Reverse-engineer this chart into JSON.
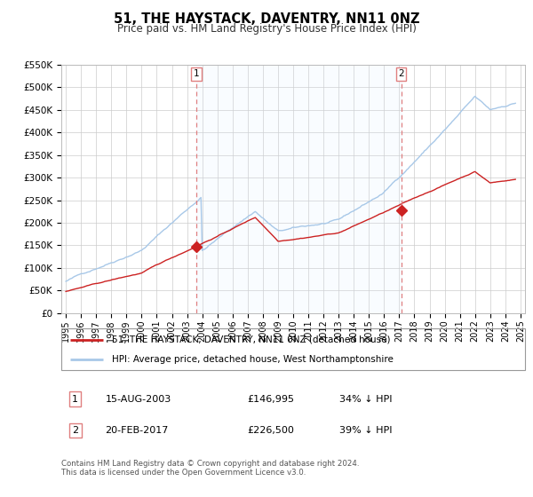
{
  "title": "51, THE HAYSTACK, DAVENTRY, NN11 0NZ",
  "subtitle": "Price paid vs. HM Land Registry's House Price Index (HPI)",
  "ylabel_ticks": [
    "£0",
    "£50K",
    "£100K",
    "£150K",
    "£200K",
    "£250K",
    "£300K",
    "£350K",
    "£400K",
    "£450K",
    "£500K",
    "£550K"
  ],
  "ytick_vals": [
    0,
    50000,
    100000,
    150000,
    200000,
    250000,
    300000,
    350000,
    400000,
    450000,
    500000,
    550000
  ],
  "ylim": [
    0,
    550000
  ],
  "xtick_years": [
    1995,
    1996,
    1997,
    1998,
    1999,
    2000,
    2001,
    2002,
    2003,
    2004,
    2005,
    2006,
    2007,
    2008,
    2009,
    2010,
    2011,
    2012,
    2013,
    2014,
    2015,
    2016,
    2017,
    2018,
    2019,
    2020,
    2021,
    2022,
    2023,
    2024,
    2025
  ],
  "xlim_start": 1994.7,
  "xlim_end": 2025.3,
  "hpi_color": "#a8c8e8",
  "price_color": "#cc2222",
  "marker_line_color": "#e08080",
  "shade_color": "#ddeeff",
  "transaction1_date": "15-AUG-2003",
  "transaction1_price": 146995,
  "transaction1_pct": "34% ↓ HPI",
  "transaction1_x": 2003.625,
  "transaction2_date": "20-FEB-2017",
  "transaction2_price": 226500,
  "transaction2_pct": "39% ↓ HPI",
  "transaction2_x": 2017.125,
  "legend_line1": "51, THE HAYSTACK, DAVENTRY, NN11 0NZ (detached house)",
  "legend_line2": "HPI: Average price, detached house, West Northamptonshire",
  "footer": "Contains HM Land Registry data © Crown copyright and database right 2024.\nThis data is licensed under the Open Government Licence v3.0."
}
